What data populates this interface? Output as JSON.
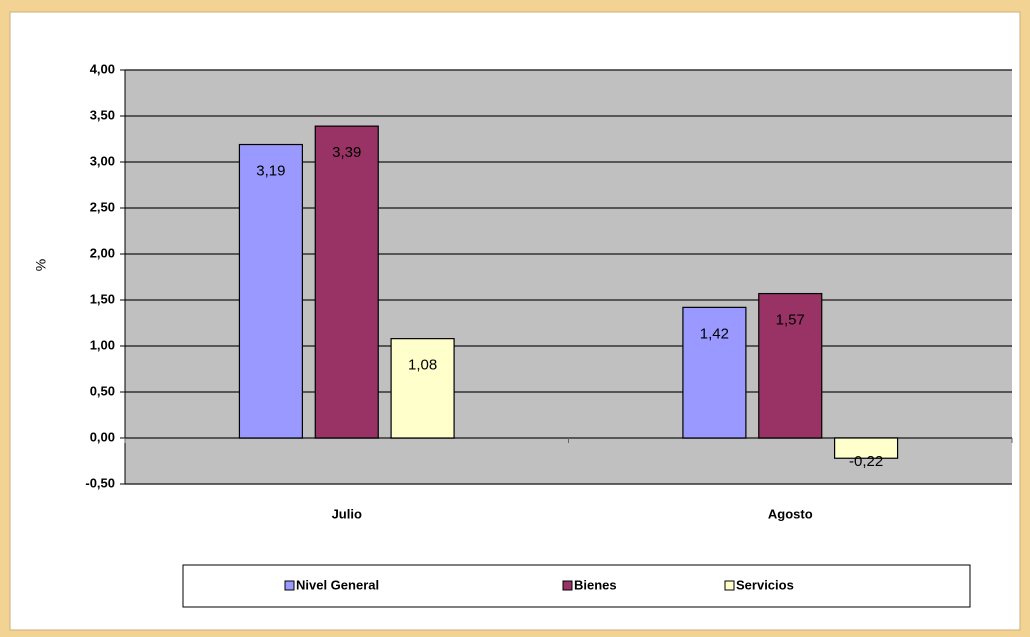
{
  "chart_data": {
    "type": "bar",
    "y_label": "%",
    "categories": [
      "Julio",
      "Agosto"
    ],
    "series": [
      {
        "name": "Nivel General",
        "color": "#9999ff",
        "values": [
          3.19,
          1.42
        ],
        "value_labels": [
          "3,19",
          "1,42"
        ]
      },
      {
        "name": "Bienes",
        "color": "#993366",
        "values": [
          3.39,
          1.57
        ],
        "value_labels": [
          "3,39",
          "1,57"
        ]
      },
      {
        "name": "Servicios",
        "color": "#ffffcc",
        "values": [
          1.08,
          -0.22
        ],
        "value_labels": [
          "1,08",
          "-0,22"
        ]
      }
    ],
    "ylim": [
      -0.5,
      4
    ],
    "yticks": [
      {
        "value": -0.5,
        "label": "-0,50"
      },
      {
        "value": 0,
        "label": "0,00"
      },
      {
        "value": 0.5,
        "label": "0,50"
      },
      {
        "value": 1,
        "label": "1,00"
      },
      {
        "value": 1.5,
        "label": "1,50"
      },
      {
        "value": 2,
        "label": "2,00"
      },
      {
        "value": 2.5,
        "label": "2,50"
      },
      {
        "value": 3,
        "label": "3,00"
      },
      {
        "value": 3.5,
        "label": "3,50"
      },
      {
        "value": 4,
        "label": "4,00"
      }
    ],
    "grid": true,
    "legend": "bottom"
  }
}
